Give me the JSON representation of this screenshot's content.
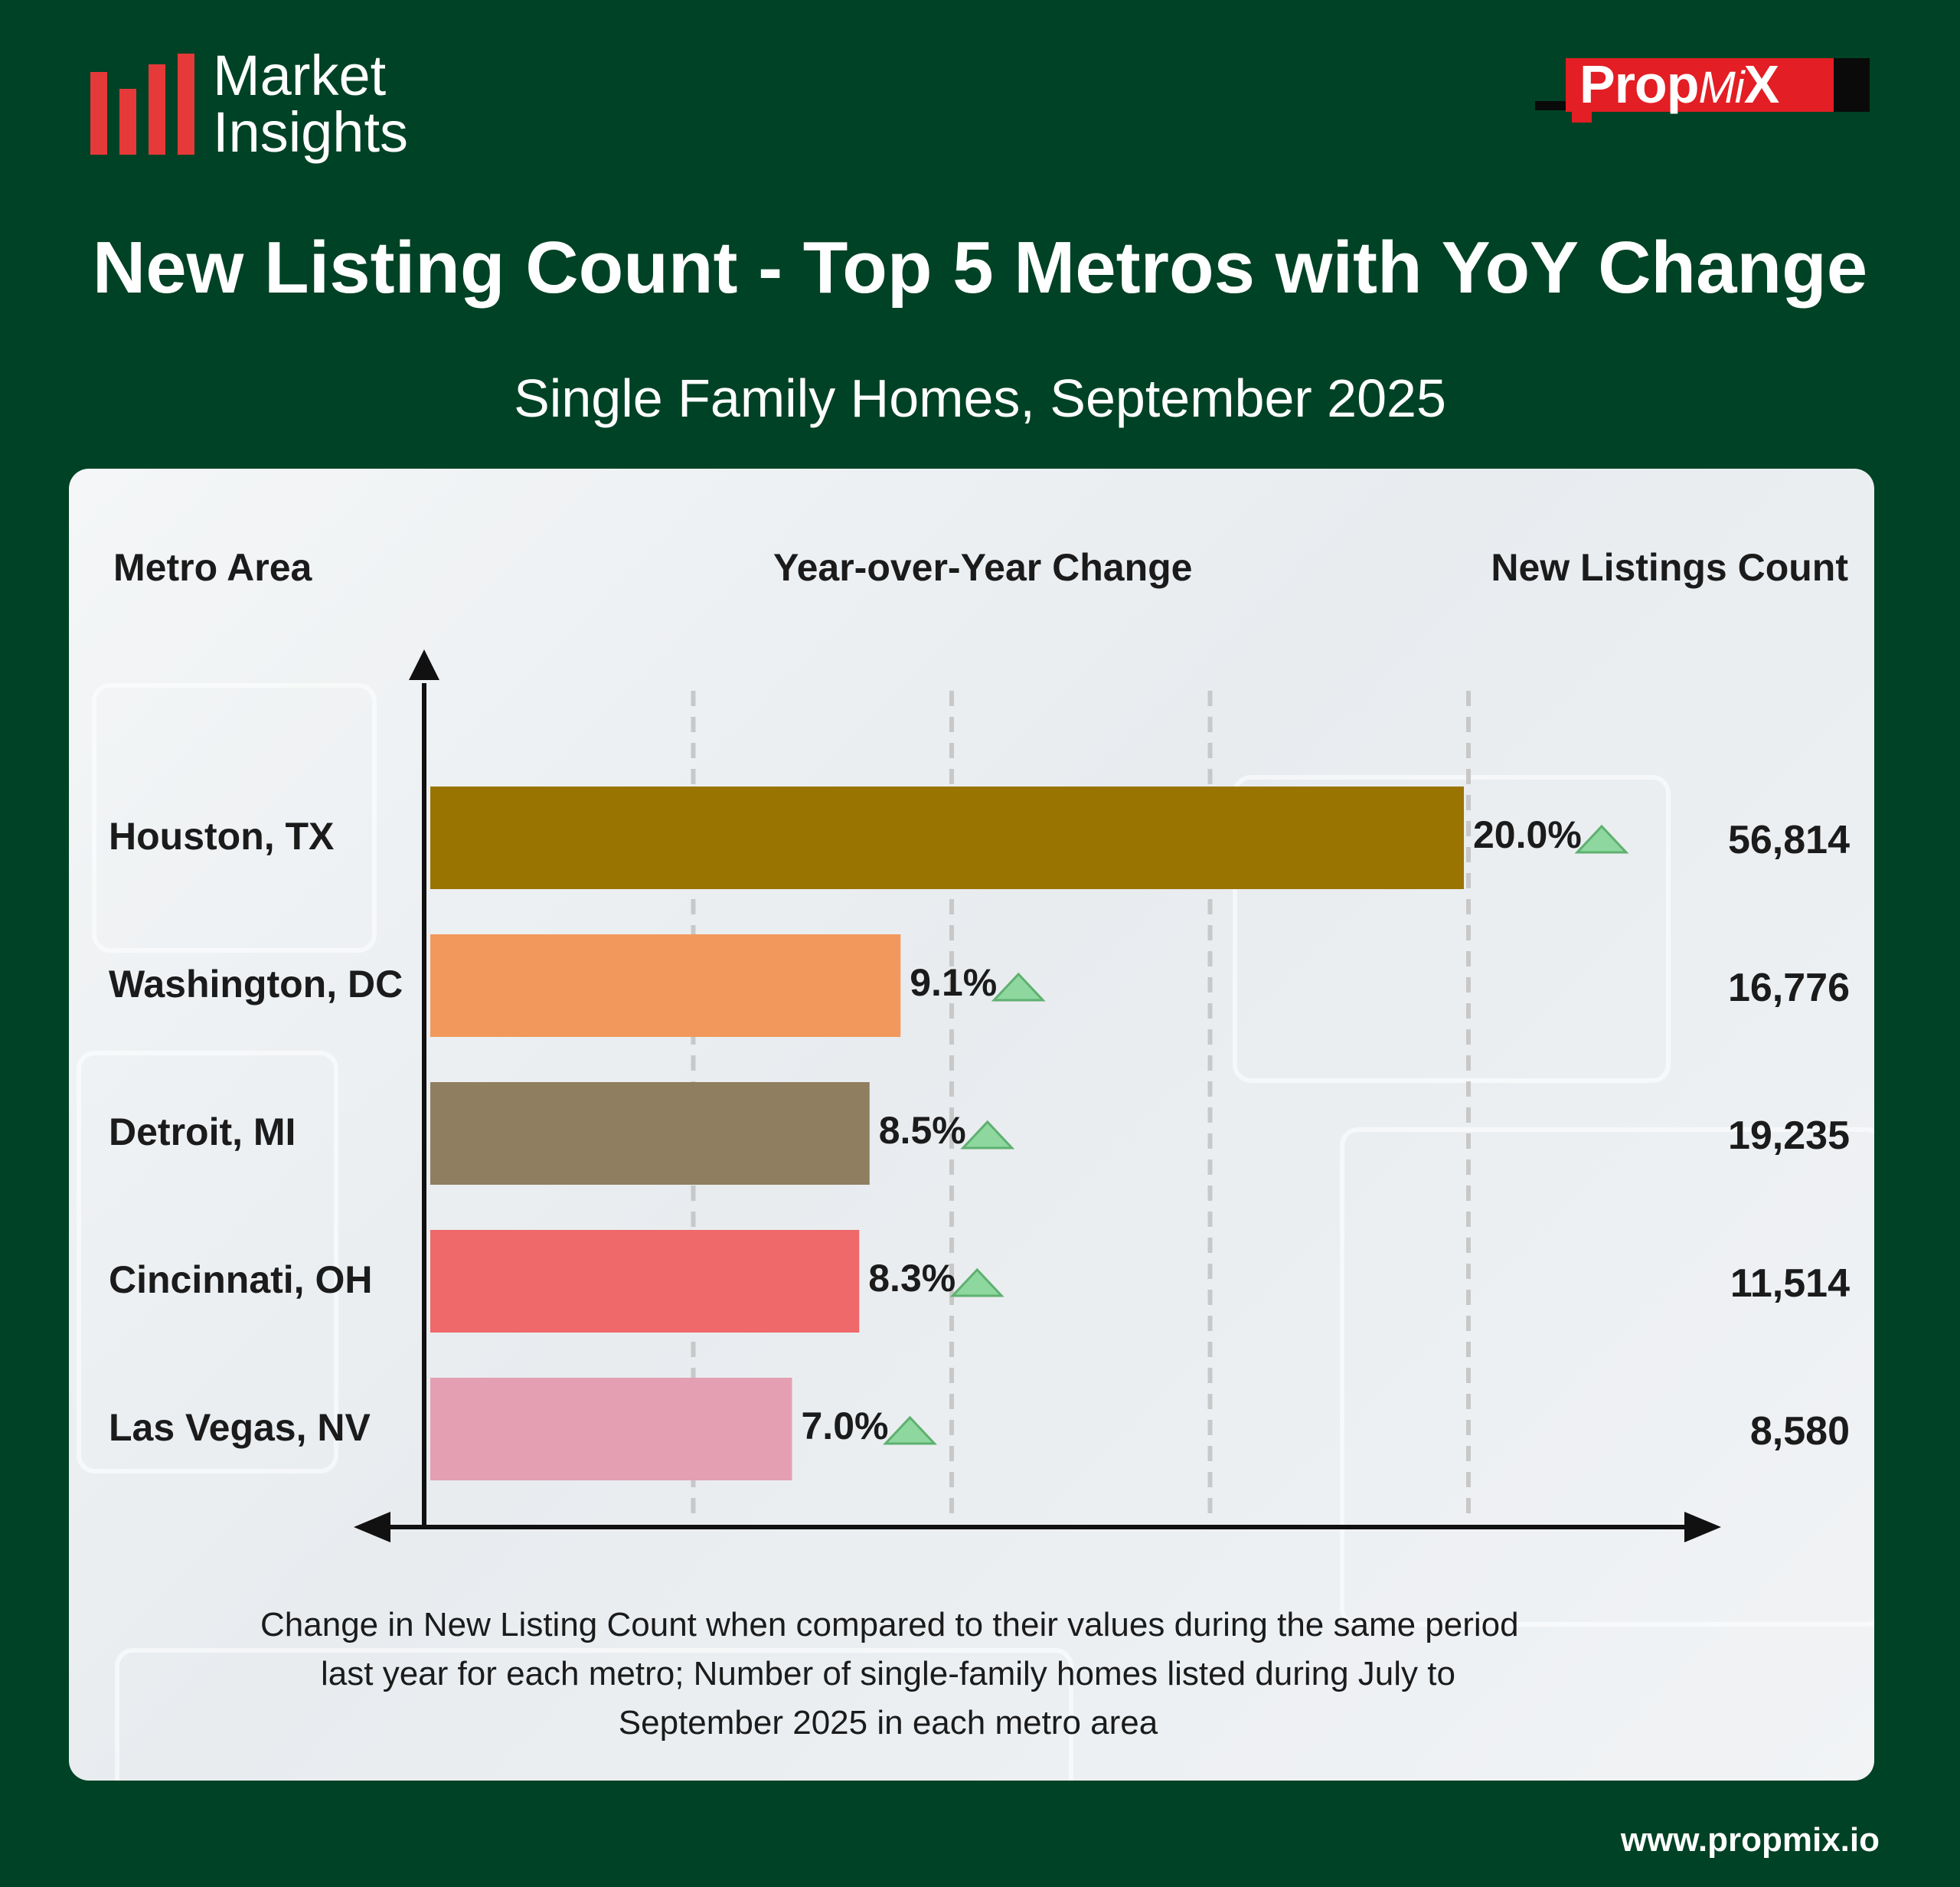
{
  "brand": {
    "logo_line1": "Market",
    "logo_line2": "Insights",
    "partner_main": "Prop",
    "partner_mi": "Mi",
    "partner_x": "X",
    "url": "www.propmix.io"
  },
  "headers": {
    "metro": "Metro Area",
    "yoy": "Year-over-Year Change",
    "count": "New Listings Count"
  },
  "footnote": {
    "line1": "Change in New Listing Count when compared to their values during the same period",
    "line2": "last year for each metro; Number of single-family homes listed during July to",
    "line3": "September 2025 in each metro area"
  },
  "colors": {
    "background": "#004225",
    "up_arrow": "#8ed8a0"
  },
  "chart_data": {
    "type": "bar",
    "orientation": "horizontal",
    "title": "New Listing Count - Top 5 Metros with YoY Change",
    "subtitle": "Single Family Homes, September 2025",
    "categories": [
      "Houston, TX",
      "Washington, DC",
      "Detroit, MI",
      "Cincinnati, OH",
      "Las Vegas, NV"
    ],
    "values": [
      20.0,
      9.1,
      8.5,
      8.3,
      7.0
    ],
    "value_labels": [
      "20.0%",
      "9.1%",
      "8.5%",
      "8.3%",
      "7.0%"
    ],
    "new_listings_count": [
      "56,814",
      "16,776",
      "19,235",
      "11,514",
      "8,580"
    ],
    "trend": [
      "up",
      "up",
      "up",
      "up",
      "up"
    ],
    "bar_colors": [
      "#9a7400",
      "#f2985c",
      "#8f7e5f",
      "#ef686a",
      "#e49fb2"
    ],
    "xlim": [
      0,
      20
    ],
    "grid": "vertical-dashed"
  }
}
